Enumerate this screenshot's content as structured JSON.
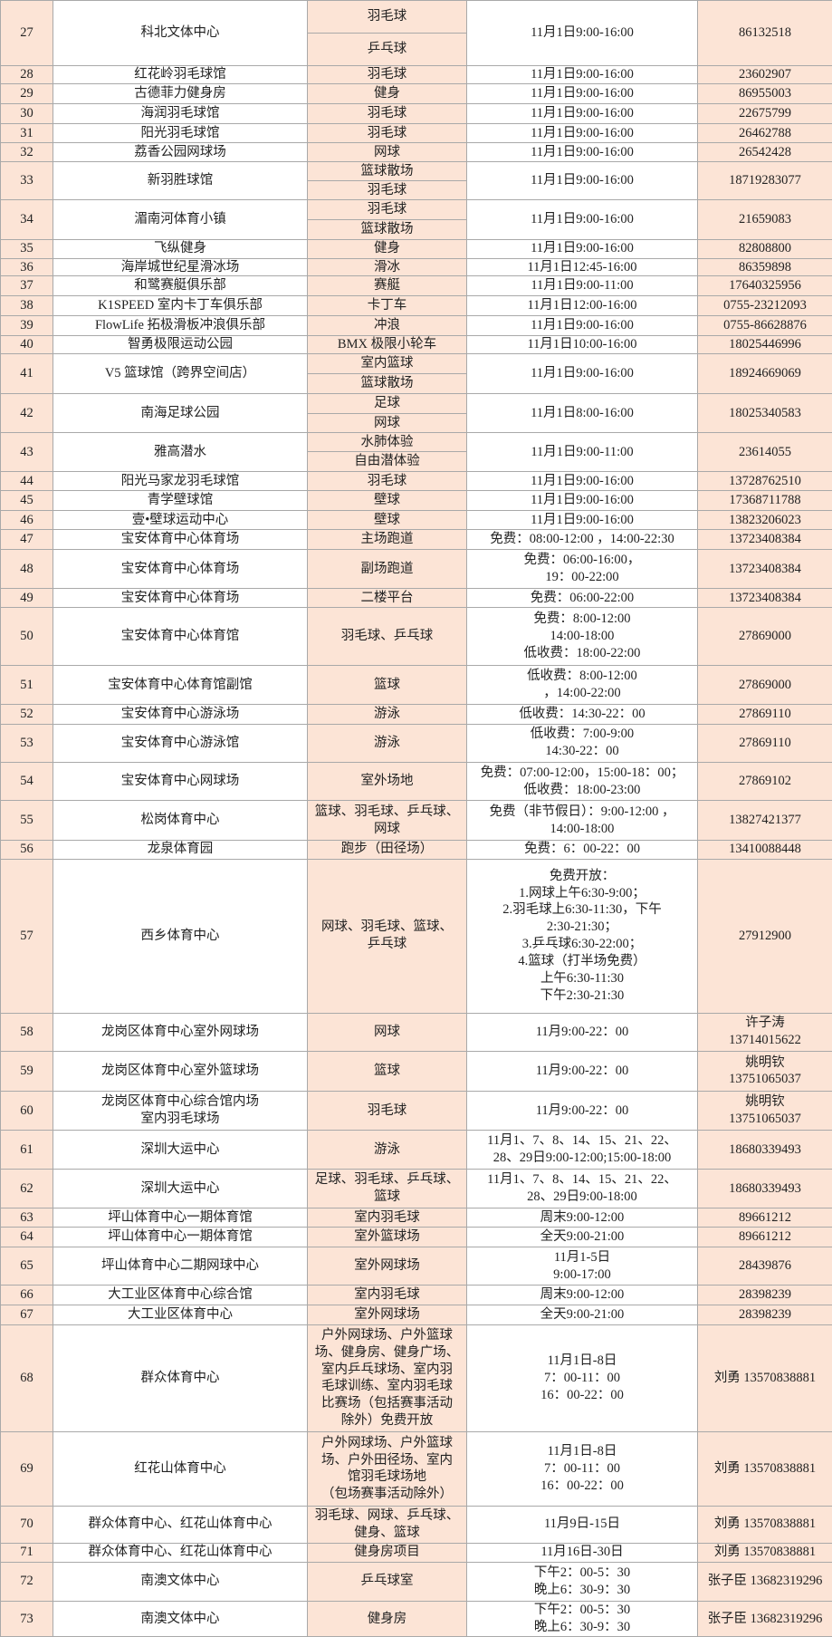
{
  "colors": {
    "peach": "#fce4d6",
    "white": "#ffffff",
    "border": "#a9a9a9"
  },
  "rows": [
    {
      "no": "27",
      "venue": "科北文体中心",
      "sports": [
        "羽毛球",
        "乒乓球"
      ],
      "time": "11月1日9:00-16:00",
      "contact": "86132518"
    },
    {
      "no": "28",
      "venue": "红花岭羽毛球馆",
      "sports": [
        "羽毛球"
      ],
      "time": "11月1日9:00-16:00",
      "contact": "23602907"
    },
    {
      "no": "29",
      "venue": "古德菲力健身房",
      "sports": [
        "健身"
      ],
      "time": "11月1日9:00-16:00",
      "contact": "86955003"
    },
    {
      "no": "30",
      "venue": "海润羽毛球馆",
      "sports": [
        "羽毛球"
      ],
      "time": "11月1日9:00-16:00",
      "contact": "22675799"
    },
    {
      "no": "31",
      "venue": "阳光羽毛球馆",
      "sports": [
        "羽毛球"
      ],
      "time": "11月1日9:00-16:00",
      "contact": "26462788"
    },
    {
      "no": "32",
      "venue": "荔香公园网球场",
      "sports": [
        "网球"
      ],
      "time": "11月1日9:00-16:00",
      "contact": "26542428"
    },
    {
      "no": "33",
      "venue": "新羽胜球馆",
      "sports": [
        "篮球散场",
        "羽毛球"
      ],
      "time": "11月1日9:00-16:00",
      "contact": "18719283077"
    },
    {
      "no": "34",
      "venue": "湄南河体育小镇",
      "sports": [
        "羽毛球",
        "篮球散场"
      ],
      "time": "11月1日9:00-16:00",
      "contact": "21659083"
    },
    {
      "no": "35",
      "venue": "飞纵健身",
      "sports": [
        "健身"
      ],
      "time": "11月1日9:00-16:00",
      "contact": "82808800"
    },
    {
      "no": "36",
      "venue": "海岸城世纪星滑冰场",
      "sports": [
        "滑冰"
      ],
      "time": "11月1日12:45-16:00",
      "contact": "86359898"
    },
    {
      "no": "37",
      "venue": "和鹭赛艇俱乐部",
      "sports": [
        "赛艇"
      ],
      "time": "11月1日9:00-11:00",
      "contact": "17640325956"
    },
    {
      "no": "38",
      "venue": "K1SPEED 室内卡丁车俱乐部",
      "sports": [
        "卡丁车"
      ],
      "time": "11月1日12:00-16:00",
      "contact": "0755-23212093"
    },
    {
      "no": "39",
      "venue": "FlowLife 拓极滑板冲浪俱乐部",
      "sports": [
        "冲浪"
      ],
      "time": "11月1日9:00-16:00",
      "contact": "0755-86628876"
    },
    {
      "no": "40",
      "venue": "智勇极限运动公园",
      "sports": [
        "BMX 极限小轮车"
      ],
      "time": "11月1日10:00-16:00",
      "contact": "18025446996"
    },
    {
      "no": "41",
      "venue": "V5 篮球馆（跨界空间店）",
      "sports": [
        "室内篮球",
        "篮球散场"
      ],
      "time": "11月1日9:00-16:00",
      "contact": "18924669069"
    },
    {
      "no": "42",
      "venue": "南海足球公园",
      "sports": [
        "足球",
        "网球"
      ],
      "time": "11月1日8:00-16:00",
      "contact": "18025340583"
    },
    {
      "no": "43",
      "venue": "雅高潜水",
      "sports": [
        "水肺体验",
        "自由潜体验"
      ],
      "time": "11月1日9:00-11:00",
      "contact": "23614055"
    },
    {
      "no": "44",
      "venue": "阳光马家龙羽毛球馆",
      "sports": [
        "羽毛球"
      ],
      "time": "11月1日9:00-16:00",
      "contact": "13728762510"
    },
    {
      "no": "45",
      "venue": "青学壁球馆",
      "sports": [
        "壁球"
      ],
      "time": "11月1日9:00-16:00",
      "contact": "17368711788"
    },
    {
      "no": "46",
      "venue": "壹•壁球运动中心",
      "sports": [
        "壁球"
      ],
      "time": "11月1日9:00-16:00",
      "contact": "13823206023"
    },
    {
      "no": "47",
      "venue": "宝安体育中心体育场",
      "sports": [
        "主场跑道"
      ],
      "time": "免费：08:00-12:00 ，14:00-22:30",
      "contact": "13723408384"
    },
    {
      "no": "48",
      "venue": "宝安体育中心体育场",
      "sports": [
        "副场跑道"
      ],
      "time": "免费：06:00-16:00，\n19：00-22:00",
      "contact": "13723408384"
    },
    {
      "no": "49",
      "venue": "宝安体育中心体育场",
      "sports": [
        "二楼平台"
      ],
      "time": "免费：06:00-22:00",
      "contact": "13723408384"
    },
    {
      "no": "50",
      "venue": "宝安体育中心体育馆",
      "sports": [
        "羽毛球、乒乓球"
      ],
      "time": "免费：8:00-12:00\n14:00-18:00\n低收费：18:00-22:00",
      "contact": "27869000"
    },
    {
      "no": "51",
      "venue": "宝安体育中心体育馆副馆",
      "sports": [
        "篮球"
      ],
      "time": "低收费：8:00-12:00\n，14:00-22:00",
      "contact": "27869000"
    },
    {
      "no": "52",
      "venue": "宝安体育中心游泳场",
      "sports": [
        "游泳"
      ],
      "time": "低收费：14:30-22：00",
      "contact": "27869110"
    },
    {
      "no": "53",
      "venue": "宝安体育中心游泳馆",
      "sports": [
        "游泳"
      ],
      "time": "低收费：7:00-9:00\n14:30-22：00",
      "contact": "27869110"
    },
    {
      "no": "54",
      "venue": "宝安体育中心网球场",
      "sports": [
        "室外场地"
      ],
      "time": "免费：07:00-12:00，15:00-18：00；\n低收费：18:00-23:00",
      "contact": "27869102"
    },
    {
      "no": "55",
      "venue": "松岗体育中心",
      "sports": [
        "篮球、羽毛球、乒乓球、\n网球"
      ],
      "time": "免费（非节假日）：9:00-12:00 ，\n14:00-18:00",
      "contact": "13827421377"
    },
    {
      "no": "56",
      "venue": "龙泉体育园",
      "sports": [
        "跑步（田径场）"
      ],
      "time": "免费：6：00-22：00",
      "contact": "13410088448"
    },
    {
      "no": "57",
      "venue": "西乡体育中心",
      "sports": [
        "网球、羽毛球、篮球、\n乒乓球"
      ],
      "time": "免费开放：\n1.网球上午6:30-9:00；\n2.羽毛球上6:30-11:30，下午\n2:30-21:30；\n3.乒乓球6:30-22:00；\n4.篮球（打半场免费）\n上午6:30-11:30\n下午2:30-21:30",
      "contact": "27912900"
    },
    {
      "no": "58",
      "venue": "龙岗区体育中心室外网球场",
      "sports": [
        "网球"
      ],
      "time": "11月9:00-22：00",
      "contact": "许子涛\n13714015622"
    },
    {
      "no": "59",
      "venue": "龙岗区体育中心室外篮球场",
      "sports": [
        "篮球"
      ],
      "time": "11月9:00-22：00",
      "contact": "姚明钦\n13751065037"
    },
    {
      "no": "60",
      "venue": "龙岗区体育中心综合馆内场\n室内羽毛球场",
      "sports": [
        "羽毛球"
      ],
      "time": "11月9:00-22：00",
      "contact": "姚明钦\n13751065037"
    },
    {
      "no": "61",
      "venue": "深圳大运中心",
      "sports": [
        "游泳"
      ],
      "time": "11月1、7、8、14、15、21、22、\n28、29日9:00-12:00;15:00-18:00",
      "contact": "18680339493"
    },
    {
      "no": "62",
      "venue": "深圳大运中心",
      "sports": [
        "足球、羽毛球、乒乓球、\n篮球"
      ],
      "time": "11月1、7、8、14、15、21、22、\n28、29日9:00-18:00",
      "contact": "18680339493"
    },
    {
      "no": "63",
      "venue": "坪山体育中心一期体育馆",
      "sports": [
        "室内羽毛球"
      ],
      "time": "周末9:00-12:00",
      "contact": "89661212"
    },
    {
      "no": "64",
      "venue": "坪山体育中心一期体育馆",
      "sports": [
        "室外篮球场"
      ],
      "time": "全天9:00-21:00",
      "contact": "89661212"
    },
    {
      "no": "65",
      "venue": "坪山体育中心二期网球中心",
      "sports": [
        "室外网球场"
      ],
      "time": "11月1-5日\n9:00-17:00",
      "contact": "28439876"
    },
    {
      "no": "66",
      "venue": "大工业区体育中心综合馆",
      "sports": [
        "室内羽毛球"
      ],
      "time": "周末9:00-12:00",
      "contact": "28398239"
    },
    {
      "no": "67",
      "venue": "大工业区体育中心",
      "sports": [
        "室外网球场"
      ],
      "time": "全天9:00-21:00",
      "contact": "28398239"
    },
    {
      "no": "68",
      "venue": "群众体育中心",
      "sports": [
        "户外网球场、户外篮球\n场、健身房、健身广场、\n室内乒乓球场、室内羽\n毛球训练、室内羽毛球\n比赛场（包括赛事活动\n除外）免费开放"
      ],
      "time": "11月1日-8日\n7：00-11：00\n16：00-22：00",
      "contact": "刘勇 13570838881"
    },
    {
      "no": "69",
      "venue": "红花山体育中心",
      "sports": [
        "户外网球场、户外篮球\n场、户外田径场、室内\n馆羽毛球场地\n（包场赛事活动除外）"
      ],
      "time": "11月1日-8日\n7：00-11：00\n16：00-22：00",
      "contact": "刘勇 13570838881"
    },
    {
      "no": "70",
      "venue": "群众体育中心、红花山体育中心",
      "sports": [
        "羽毛球、网球、乒乓球、\n健身、篮球"
      ],
      "time": "11月9日-15日",
      "contact": "刘勇 13570838881"
    },
    {
      "no": "71",
      "venue": "群众体育中心、红花山体育中心",
      "sports": [
        "健身房项目"
      ],
      "time": "11月16日-30日",
      "contact": "刘勇 13570838881"
    },
    {
      "no": "72",
      "venue": "南澳文体中心",
      "sports": [
        "乒乓球室"
      ],
      "time": "下午2：00-5：30\n晚上6：30-9：30",
      "contact": "张子臣 13682319296"
    },
    {
      "no": "73",
      "venue": "南澳文体中心",
      "sports": [
        "健身房"
      ],
      "time": "下午2：00-5：30\n晚上6：30-9：30",
      "contact": "张子臣 13682319296"
    }
  ]
}
